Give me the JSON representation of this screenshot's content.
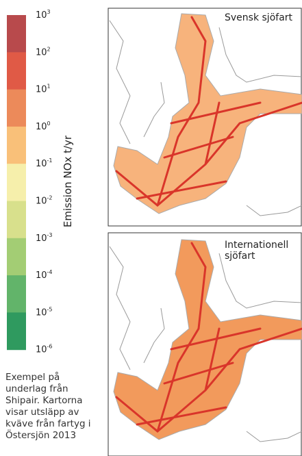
{
  "legend": {
    "title": "Emission NOx t/yr",
    "ticks": [
      {
        "base": "10",
        "exponent": "3"
      },
      {
        "base": "10",
        "exponent": "2"
      },
      {
        "base": "10",
        "exponent": "1"
      },
      {
        "base": "10",
        "exponent": "0"
      },
      {
        "base": "10",
        "exponent": "-1"
      },
      {
        "base": "10",
        "exponent": "-2"
      },
      {
        "base": "10",
        "exponent": "-3"
      },
      {
        "base": "10",
        "exponent": "-4"
      },
      {
        "base": "10",
        "exponent": "-5"
      },
      {
        "base": "10",
        "exponent": "-6"
      }
    ],
    "colors": [
      "#b84a4c",
      "#e05a46",
      "#ec8a5a",
      "#f9c079",
      "#f6efab",
      "#d8e08c",
      "#a3cd74",
      "#62b46a",
      "#2f9a5f"
    ]
  },
  "maps": [
    {
      "title": [
        "Svensk sjöfart"
      ]
    },
    {
      "title": [
        "Internationell",
        "sjöfart"
      ]
    }
  ],
  "caption": [
    "Exempel på",
    "underlag från",
    "Shipair. Kartorna",
    "visar utsläpp av",
    "kväve från fartyg i",
    "Östersjön 2013"
  ]
}
